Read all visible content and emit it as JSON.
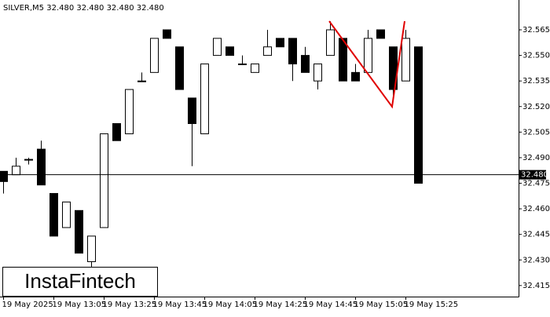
{
  "chart_data": {
    "type": "candlestick",
    "title": "SILVER,M5  32.480 32.480 32.480 32.480",
    "brand": "InstaFintech",
    "categories": [
      "19 May 2025",
      null,
      null,
      null,
      "19 May 13:05",
      null,
      null,
      null,
      "19 May 13:25",
      null,
      null,
      null,
      "19 May 13:45",
      null,
      null,
      null,
      "19 May 14:05",
      null,
      null,
      null,
      "19 May 14:25",
      null,
      null,
      null,
      "19 May 14:45",
      null,
      null,
      null,
      "19 May 15:05",
      null,
      null,
      null,
      "19 May 15:25",
      null
    ],
    "open": [
      32.482,
      32.48,
      32.489,
      32.495,
      32.469,
      32.449,
      32.459,
      32.429,
      32.449,
      32.51,
      32.504,
      32.535,
      32.54,
      32.565,
      32.555,
      32.525,
      32.504,
      32.55,
      32.555,
      32.545,
      32.54,
      32.55,
      32.56,
      32.56,
      32.55,
      32.535,
      32.55,
      32.56,
      32.54,
      32.54,
      32.565,
      32.555,
      32.535,
      32.555
    ],
    "high": [
      32.482,
      32.49,
      32.49,
      32.5,
      32.469,
      32.464,
      32.459,
      32.444,
      32.504,
      32.51,
      32.53,
      32.54,
      32.56,
      32.565,
      32.555,
      32.525,
      32.545,
      32.56,
      32.555,
      32.55,
      32.545,
      32.565,
      32.56,
      32.56,
      32.555,
      32.545,
      32.57,
      32.56,
      32.545,
      32.565,
      32.565,
      32.555,
      32.565,
      32.555
    ],
    "low": [
      32.469,
      32.48,
      32.486,
      32.474,
      32.444,
      32.449,
      32.434,
      32.426,
      32.449,
      32.5,
      32.504,
      32.535,
      32.54,
      32.56,
      32.53,
      32.485,
      32.504,
      32.55,
      32.55,
      32.545,
      32.54,
      32.55,
      32.555,
      32.535,
      32.54,
      32.53,
      32.55,
      32.535,
      32.535,
      32.54,
      32.56,
      32.525,
      32.535,
      32.475
    ],
    "close": [
      32.476,
      32.485,
      32.489,
      32.474,
      32.444,
      32.464,
      32.434,
      32.444,
      32.504,
      32.5,
      32.53,
      32.535,
      32.56,
      32.56,
      32.53,
      32.51,
      32.545,
      32.56,
      32.55,
      32.545,
      32.545,
      32.555,
      32.555,
      32.545,
      32.54,
      32.545,
      32.565,
      32.535,
      32.535,
      32.56,
      32.56,
      32.53,
      32.56,
      32.475
    ],
    "up_color": "#ffffff",
    "down_color": "#000000",
    "ylim": [
      32.4085,
      32.5825
    ],
    "yticks": [
      {
        "value": 32.565,
        "label": "32.565"
      },
      {
        "value": 32.55,
        "label": "32.550"
      },
      {
        "value": 32.535,
        "label": "32.535"
      },
      {
        "value": 32.52,
        "label": "32.520"
      },
      {
        "value": 32.505,
        "label": "32.505"
      },
      {
        "value": 32.49,
        "label": "32.490"
      },
      {
        "value": 32.475,
        "label": "32.475"
      },
      {
        "value": 32.46,
        "label": "32.460"
      },
      {
        "value": 32.445,
        "label": "32.445"
      },
      {
        "value": 32.43,
        "label": "32.430"
      },
      {
        "value": 32.415,
        "label": "32.415"
      }
    ],
    "price": {
      "value": 32.48,
      "label": "32.480"
    }
  }
}
